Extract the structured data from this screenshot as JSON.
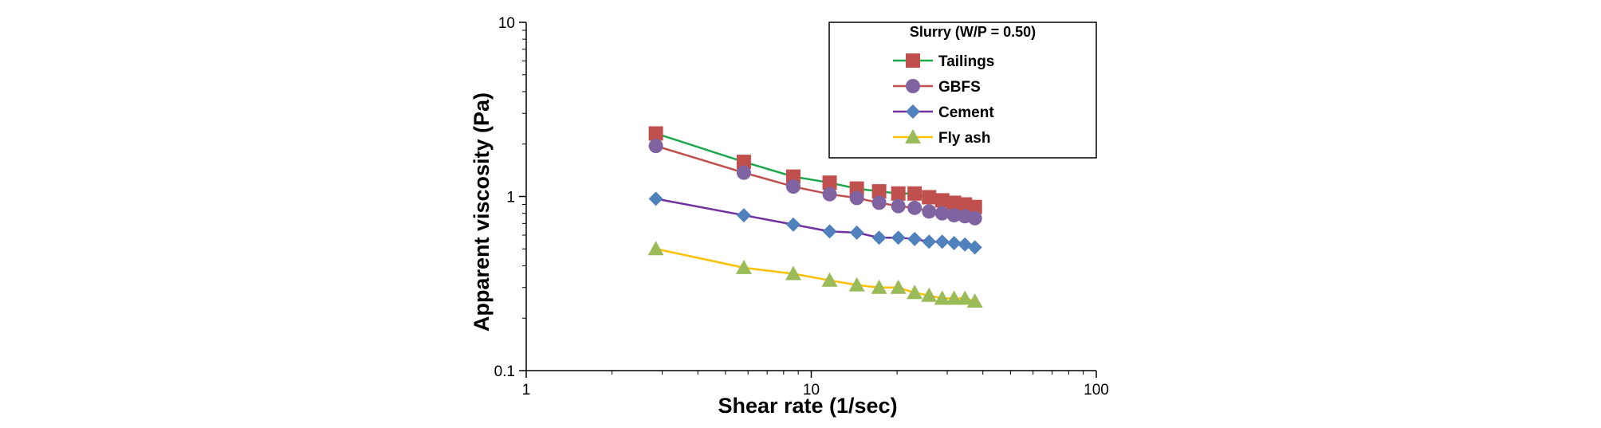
{
  "chart_data": {
    "type": "line",
    "title": "",
    "xlabel": "Shear rate (1/sec)",
    "ylabel": "Apparent  viscosity (Pa)",
    "xscale": "log",
    "yscale": "log",
    "xlim": [
      1,
      100
    ],
    "ylim": [
      0.1,
      10
    ],
    "xticks": [
      {
        "value": 1,
        "label": "1"
      },
      {
        "value": 10,
        "label": "10"
      },
      {
        "value": 100,
        "label": "100"
      }
    ],
    "yticks": [
      {
        "value": 0.1,
        "label": "0.1"
      },
      {
        "value": 1,
        "label": "1"
      },
      {
        "value": 10,
        "label": "10"
      }
    ],
    "grid": false,
    "legend": {
      "title": "Slurry (W/P = 0.50)",
      "position": "top-right"
    },
    "x": [
      2.85,
      5.8,
      8.65,
      11.6,
      14.45,
      17.3,
      20.2,
      23.05,
      25.9,
      28.8,
      31.7,
      34.6,
      37.5
    ],
    "series": [
      {
        "name": "Tailings",
        "line_color": "#1ea84e",
        "marker_color": "#c0504d",
        "marker": "square",
        "values": [
          2.3,
          1.58,
          1.3,
          1.2,
          1.11,
          1.07,
          1.04,
          1.04,
          0.99,
          0.95,
          0.92,
          0.9,
          0.87
        ]
      },
      {
        "name": "GBFS",
        "line_color": "#c0504d",
        "marker_color": "#8064a2",
        "marker": "circle",
        "values": [
          1.95,
          1.37,
          1.14,
          1.03,
          0.98,
          0.92,
          0.88,
          0.86,
          0.82,
          0.8,
          0.78,
          0.77,
          0.75
        ]
      },
      {
        "name": "Cement",
        "line_color": "#7030a0",
        "marker_color": "#4f81bd",
        "marker": "diamond",
        "values": [
          0.97,
          0.78,
          0.69,
          0.63,
          0.62,
          0.58,
          0.58,
          0.57,
          0.55,
          0.55,
          0.54,
          0.53,
          0.51
        ]
      },
      {
        "name": "Fly ash",
        "line_color": "#ffc000",
        "marker_color": "#9bbb59",
        "marker": "triangle",
        "values": [
          0.5,
          0.39,
          0.36,
          0.33,
          0.31,
          0.3,
          0.3,
          0.28,
          0.27,
          0.26,
          0.26,
          0.26,
          0.25
        ]
      }
    ]
  }
}
